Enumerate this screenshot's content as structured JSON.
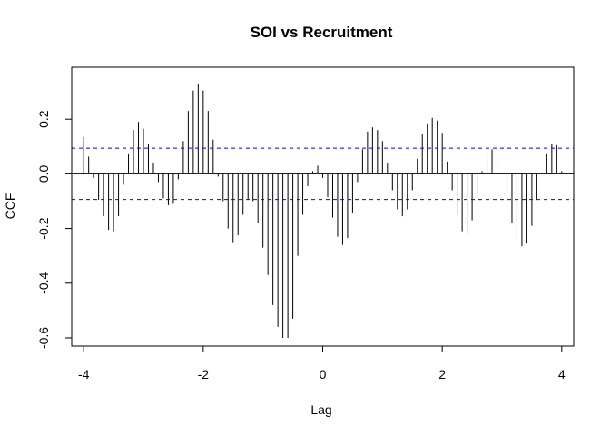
{
  "chart_data": {
    "type": "bar",
    "title": "SOI vs Recruitment",
    "xlabel": "Lag",
    "ylabel": "CCF",
    "xlim": [
      -4.2,
      4.2
    ],
    "ylim": [
      -0.63,
      0.39
    ],
    "xticks": [
      -4,
      -2,
      0,
      2,
      4
    ],
    "xtick_labels": [
      "-4",
      "-2",
      "0",
      "2",
      "4"
    ],
    "yticks": [
      -0.6,
      -0.4,
      -0.2,
      0.0,
      0.2
    ],
    "ytick_labels": [
      "-0.6",
      "-0.4",
      "-0.2",
      "0.0",
      "0.2"
    ],
    "conf_limit": 0.094,
    "zero_line_color": "#000000",
    "conf_line_color": "#0000ff",
    "bar_color": "#000000",
    "lags": [
      -4.0,
      -3.9167,
      -3.8333,
      -3.75,
      -3.6667,
      -3.5833,
      -3.5,
      -3.4167,
      -3.3333,
      -3.25,
      -3.1667,
      -3.0833,
      -3.0,
      -2.9167,
      -2.8333,
      -2.75,
      -2.6667,
      -2.5833,
      -2.5,
      -2.4167,
      -2.3333,
      -2.25,
      -2.1667,
      -2.0833,
      -2.0,
      -1.9167,
      -1.8333,
      -1.75,
      -1.6667,
      -1.5833,
      -1.5,
      -1.4167,
      -1.3333,
      -1.25,
      -1.1667,
      -1.0833,
      -1.0,
      -0.9167,
      -0.8333,
      -0.75,
      -0.6667,
      -0.5833,
      -0.5,
      -0.4167,
      -0.3333,
      -0.25,
      -0.1667,
      -0.0833,
      0.0,
      0.0833,
      0.1667,
      0.25,
      0.3333,
      0.4167,
      0.5,
      0.5833,
      0.6667,
      0.75,
      0.8333,
      0.9167,
      1.0,
      1.0833,
      1.1667,
      1.25,
      1.3333,
      1.4167,
      1.5,
      1.5833,
      1.6667,
      1.75,
      1.8333,
      1.9167,
      2.0,
      2.0833,
      2.1667,
      2.25,
      2.3333,
      2.4167,
      2.5,
      2.5833,
      2.6667,
      2.75,
      2.8333,
      2.9167,
      3.0,
      3.0833,
      3.1667,
      3.25,
      3.3333,
      3.4167,
      3.5,
      3.5833,
      3.6667,
      3.75,
      3.8333,
      3.9167,
      4.0
    ],
    "values": [
      0.135,
      0.063,
      -0.015,
      -0.095,
      -0.155,
      -0.205,
      -0.21,
      -0.155,
      -0.04,
      0.075,
      0.16,
      0.19,
      0.165,
      0.11,
      0.04,
      -0.03,
      -0.09,
      -0.115,
      -0.11,
      -0.02,
      0.12,
      0.23,
      0.305,
      0.33,
      0.305,
      0.23,
      0.125,
      -0.01,
      -0.1,
      -0.2,
      -0.25,
      -0.225,
      -0.15,
      -0.095,
      -0.1,
      -0.18,
      -0.27,
      -0.37,
      -0.48,
      -0.56,
      -0.6,
      -0.6,
      -0.53,
      -0.3,
      -0.15,
      -0.045,
      0.01,
      0.03,
      -0.015,
      -0.085,
      -0.16,
      -0.23,
      -0.26,
      -0.235,
      -0.145,
      -0.03,
      0.09,
      0.155,
      0.17,
      0.16,
      0.12,
      0.04,
      -0.06,
      -0.13,
      -0.155,
      -0.13,
      -0.06,
      0.055,
      0.145,
      0.185,
      0.205,
      0.195,
      0.15,
      0.045,
      -0.06,
      -0.15,
      -0.21,
      -0.22,
      -0.17,
      -0.085,
      0.01,
      0.075,
      0.09,
      0.06,
      0.0,
      -0.09,
      -0.18,
      -0.24,
      -0.265,
      -0.255,
      -0.19,
      -0.095,
      0.0,
      0.075,
      0.11,
      0.105,
      0.01
    ]
  }
}
